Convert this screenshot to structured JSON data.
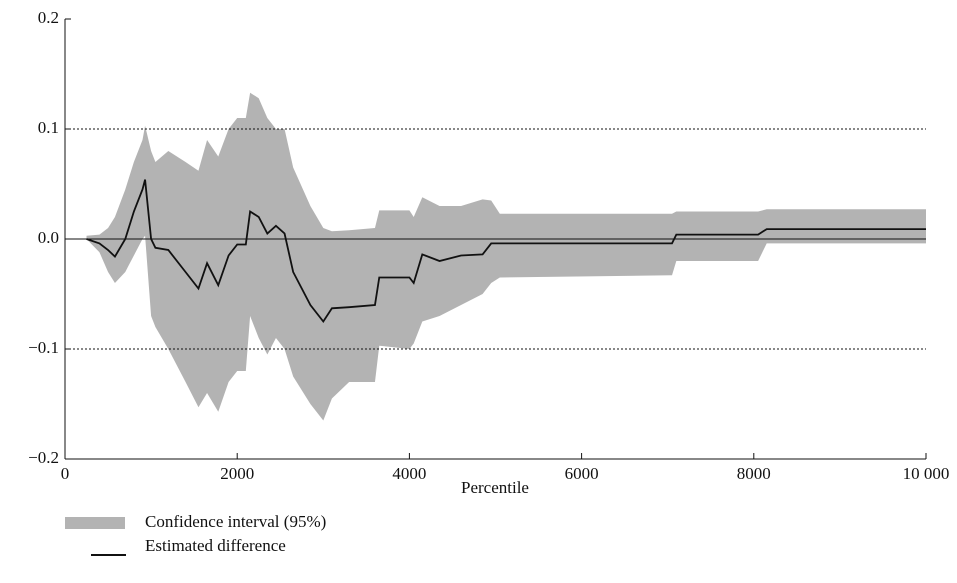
{
  "chart_data": {
    "type": "band-line",
    "x_label": "Percentile",
    "x": [
      250,
      400,
      500,
      580,
      700,
      800,
      900,
      930,
      1000,
      1050,
      1200,
      1400,
      1550,
      1650,
      1780,
      1900,
      2000,
      2100,
      2150,
      2250,
      2350,
      2450,
      2550,
      2650,
      2850,
      3000,
      3100,
      3300,
      3600,
      3650,
      4000,
      4050,
      4150,
      4350,
      4600,
      4850,
      4950,
      5050,
      7050,
      7100,
      8050,
      8150,
      10000
    ],
    "series": [
      {
        "name": "Confidence interval (95%)",
        "color": "#b3b3b3",
        "upper": [
          0.003,
          0.004,
          0.01,
          0.02,
          0.045,
          0.07,
          0.09,
          0.103,
          0.08,
          0.07,
          0.08,
          0.07,
          0.062,
          0.09,
          0.075,
          0.1,
          0.11,
          0.11,
          0.133,
          0.128,
          0.11,
          0.1,
          0.1,
          0.065,
          0.03,
          0.01,
          0.007,
          0.008,
          0.01,
          0.026,
          0.026,
          0.02,
          0.038,
          0.03,
          0.03,
          0.036,
          0.035,
          0.023,
          0.023,
          0.025,
          0.025,
          0.027,
          0.027
        ],
        "lower": [
          0,
          -0.012,
          -0.03,
          -0.04,
          -0.03,
          -0.015,
          0,
          0.003,
          -0.07,
          -0.08,
          -0.1,
          -0.13,
          -0.153,
          -0.14,
          -0.157,
          -0.13,
          -0.12,
          -0.12,
          -0.07,
          -0.09,
          -0.105,
          -0.09,
          -0.1,
          -0.125,
          -0.15,
          -0.165,
          -0.145,
          -0.13,
          -0.13,
          -0.097,
          -0.1,
          -0.095,
          -0.075,
          -0.07,
          -0.06,
          -0.05,
          -0.04,
          -0.035,
          -0.033,
          -0.02,
          -0.02,
          -0.004,
          -0.004
        ]
      },
      {
        "name": "Estimated difference",
        "color": "#111111",
        "values": [
          0,
          -0.004,
          -0.01,
          -0.016,
          0,
          0.025,
          0.045,
          0.054,
          0,
          -0.008,
          -0.01,
          -0.03,
          -0.045,
          -0.022,
          -0.042,
          -0.015,
          -0.005,
          -0.005,
          0.025,
          0.02,
          0.005,
          0.012,
          0.005,
          -0.03,
          -0.06,
          -0.075,
          -0.063,
          -0.062,
          -0.06,
          -0.035,
          -0.035,
          -0.04,
          -0.014,
          -0.02,
          -0.015,
          -0.014,
          -0.004,
          -0.004,
          -0.004,
          0.004,
          0.004,
          0.009,
          0.009
        ]
      }
    ],
    "xlim": [
      0,
      10000
    ],
    "xticks": [
      0,
      2000,
      4000,
      6000,
      8000,
      {
        "value": 10000,
        "label": "10 000"
      }
    ],
    "ylim": [
      -0.2,
      0.2
    ],
    "yticks": [
      {
        "value": -0.2,
        "label": "−0.2"
      },
      {
        "value": -0.1,
        "label": "−0.1"
      },
      {
        "value": 0,
        "label": "0.0"
      },
      0.1,
      0.2
    ],
    "grid": true
  }
}
